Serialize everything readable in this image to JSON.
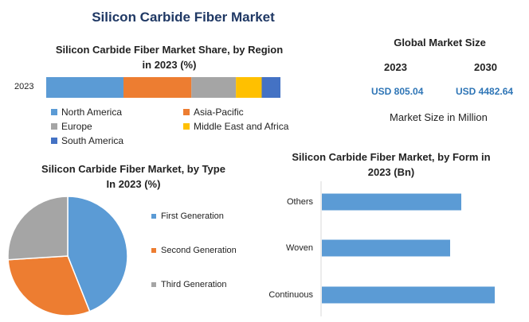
{
  "page": {
    "title": "Silicon Carbide Fiber Market"
  },
  "market_size": {
    "title": "Global Market Size",
    "year1": "2023",
    "year2": "2030",
    "value1": "USD 805.04",
    "value2": "USD 4482.64",
    "unit": "Market Size in Million"
  },
  "chart_data": [
    {
      "type": "bar",
      "orientation": "horizontal-stacked",
      "title": "Silicon Carbide Fiber Market Share, by Region in 2023 (%)",
      "title_line1": "Silicon Carbide Fiber Market Share, by Region",
      "title_line2": "in 2023 (%)",
      "categories": [
        "2023"
      ],
      "series": [
        {
          "name": "North America",
          "values": [
            33
          ],
          "color": "#5b9bd5"
        },
        {
          "name": "Asia-Pacific",
          "values": [
            29
          ],
          "color": "#ed7d31"
        },
        {
          "name": "Europe",
          "values": [
            19
          ],
          "color": "#a5a5a5"
        },
        {
          "name": "Middle East and Africa",
          "values": [
            11
          ],
          "color": "#ffc000"
        },
        {
          "name": "South America",
          "values": [
            8
          ],
          "color": "#4472c4"
        }
      ],
      "xlim": [
        0,
        100
      ],
      "legend": "bottom"
    },
    {
      "type": "pie",
      "title": "Silicon Carbide Fiber Market, by Type In 2023 (%)",
      "title_line1": "Silicon Carbide Fiber Market, by Type",
      "title_line2": "In 2023 (%)",
      "categories": [
        "First Generation",
        "Second Generation",
        "Third Generation"
      ],
      "values": [
        44,
        30,
        26
      ],
      "colors": [
        "#5b9bd5",
        "#ed7d31",
        "#a5a5a5"
      ],
      "legend": "right"
    },
    {
      "type": "bar",
      "orientation": "horizontal",
      "title": "Silicon Carbide Fiber Market, by Form in 2023 (Bn)",
      "title_line1": "Silicon Carbide Fiber Market, by Form in",
      "title_line2": "2023 (Bn)",
      "categories": [
        "Others",
        "Woven",
        "Continuous"
      ],
      "values": [
        0.25,
        0.23,
        0.31
      ],
      "xlim": [
        0,
        0.35
      ],
      "color": "#5b9bd5"
    }
  ]
}
